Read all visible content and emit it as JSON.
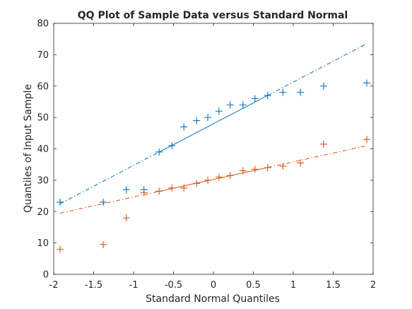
{
  "chart_data": {
    "type": "scatter",
    "title": "QQ Plot of Sample Data versus Standard Normal",
    "xlabel": "Standard Normal Quantiles",
    "ylabel": "Quantiles of Input Sample",
    "xlim": [
      -2,
      2
    ],
    "ylim": [
      0,
      80
    ],
    "xticks": [
      -2,
      -1.5,
      -1,
      -0.5,
      0,
      0.5,
      1,
      1.5,
      2
    ],
    "xtick_labels": [
      "-2",
      "-1.5",
      "-1",
      "-0.5",
      "0",
      "0.5",
      "1",
      "1.5",
      "2"
    ],
    "yticks": [
      0,
      10,
      20,
      30,
      40,
      50,
      60,
      70,
      80
    ],
    "ytick_labels": [
      "0",
      "10",
      "20",
      "30",
      "40",
      "50",
      "60",
      "70",
      "80"
    ],
    "grid": false,
    "series": [
      {
        "color": "#0072BD",
        "marker": "+",
        "x": [
          -1.92,
          -1.38,
          -1.09,
          -0.87,
          -0.68,
          -0.52,
          -0.37,
          -0.21,
          -0.07,
          0.07,
          0.21,
          0.37,
          0.52,
          0.68,
          0.87,
          1.09,
          1.38,
          1.92
        ],
        "y": [
          23,
          23,
          27,
          27,
          39,
          41,
          47,
          49,
          50,
          52,
          54,
          54,
          56,
          57,
          58,
          58,
          60,
          61
        ],
        "fit_line": {
          "x": [
            -1.92,
            1.92
          ],
          "y": [
            22.5,
            73.5
          ],
          "solid_range": [
            -0.68,
            0.68
          ]
        }
      },
      {
        "color": "#D95319",
        "marker": "+",
        "x": [
          -1.92,
          -1.38,
          -1.09,
          -0.87,
          -0.68,
          -0.52,
          -0.37,
          -0.21,
          -0.07,
          0.07,
          0.21,
          0.37,
          0.52,
          0.68,
          0.87,
          1.09,
          1.38,
          1.92
        ],
        "y": [
          8,
          9.5,
          18,
          26,
          26.5,
          27.5,
          27.5,
          29,
          30,
          31,
          31.5,
          33,
          33.5,
          34,
          34.5,
          35.5,
          41.5,
          43
        ],
        "fit_line": {
          "x": [
            -1.92,
            1.92
          ],
          "y": [
            19.5,
            41
          ],
          "solid_range": [
            -0.68,
            0.68
          ]
        }
      }
    ]
  }
}
